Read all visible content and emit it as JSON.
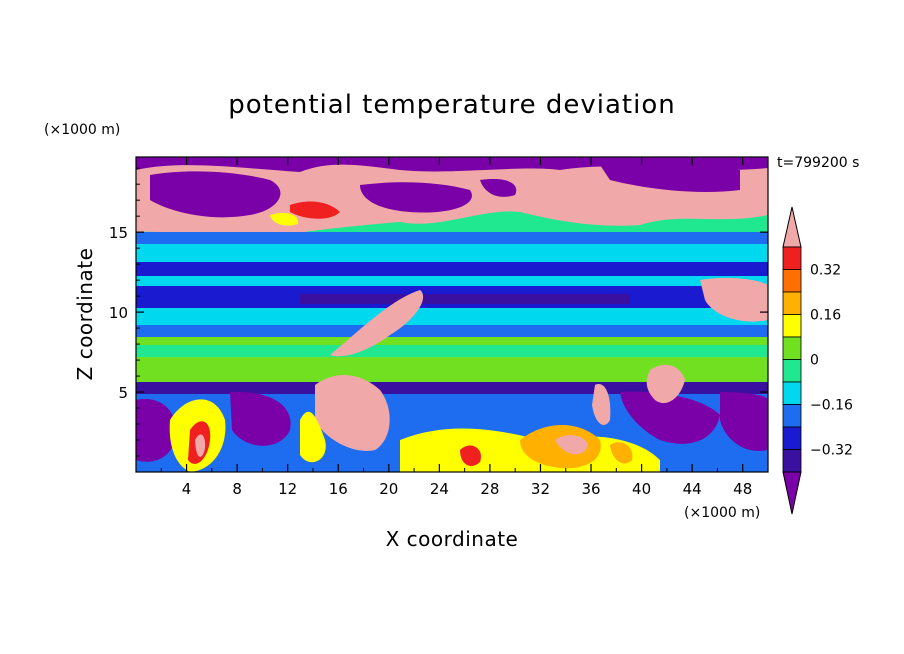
{
  "chart_data": {
    "type": "heatmap",
    "title": "potential temperature deviation",
    "time_label": "t=799200 s",
    "xlabel": "X coordinate",
    "ylabel": "Z coordinate",
    "x_unit": "(×1000 m)",
    "y_unit": "(×1000 m)",
    "xlim": [
      0,
      50
    ],
    "ylim": [
      0,
      19.7
    ],
    "x_ticks": [
      4,
      8,
      12,
      16,
      20,
      24,
      28,
      32,
      36,
      40,
      44,
      48
    ],
    "y_ticks": [
      5,
      10,
      15
    ],
    "colorbar": {
      "levels": [
        -0.4,
        -0.32,
        -0.24,
        -0.16,
        -0.08,
        0,
        0.08,
        0.16,
        0.24,
        0.32,
        0.4
      ],
      "labels": [
        "0.32",
        "0.16",
        "0",
        "−0.16",
        "−0.32"
      ],
      "label_values": [
        0.32,
        0.16,
        0,
        -0.16,
        -0.32
      ],
      "colors": [
        "#7a00a8",
        "#3a10a0",
        "#1a1ad0",
        "#1e6cf0",
        "#00d8f0",
        "#20e890",
        "#70e020",
        "#ffff00",
        "#ffb000",
        "#ff7000",
        "#f02020",
        "#f0a8a8"
      ]
    },
    "bands": [
      {
        "z": [
          17.5,
          19.7
        ],
        "value": "< -0.4"
      },
      {
        "z": [
          15.0,
          17.5
        ],
        "value": "> 0.4 / < -0.4 mixed"
      },
      {
        "z": [
          13.5,
          15.0
        ],
        "value": "-0.24"
      },
      {
        "z": [
          12.5,
          13.5
        ],
        "value": "-0.08"
      },
      {
        "z": [
          10.5,
          12.5
        ],
        "value": "-0.32"
      },
      {
        "z": [
          9.0,
          10.5
        ],
        "value": "-0.08"
      },
      {
        "z": [
          6.0,
          9.0
        ],
        "value": "0.04"
      },
      {
        "z": [
          5.0,
          6.0
        ],
        "value": "-0.36"
      },
      {
        "z": [
          0,
          5.0
        ],
        "value": "mixed"
      }
    ]
  }
}
